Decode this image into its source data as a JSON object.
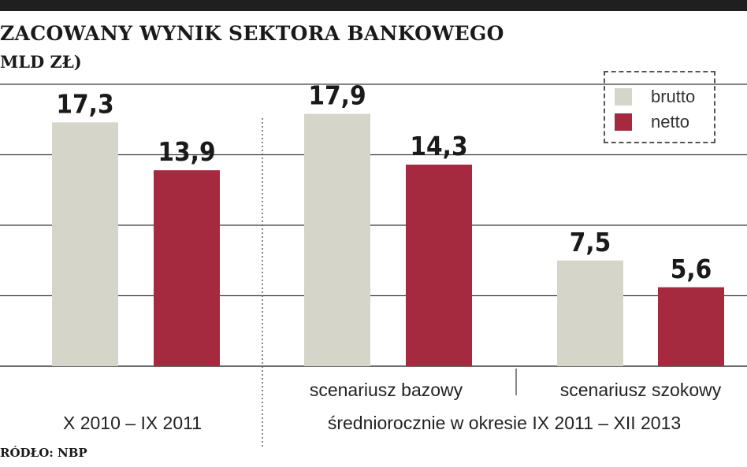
{
  "title": "ZACOWANY WYNIK SEKTORA BANKOWEGO",
  "subtitle": "MLD ZŁ)",
  "source": "RÓDŁO: NBP",
  "colors": {
    "brutto": "#d6d5ca",
    "netto": "#a52a3f",
    "grid": "#3a3a3a",
    "text": "#1a1a1a"
  },
  "chart_data": {
    "type": "bar",
    "categories": [
      "X 2010 – IX 2011",
      "scenariusz bazowy",
      "scenariusz szokowy"
    ],
    "group_label": "średniorocznie w okresie IX 2011 – XII 2013",
    "series": [
      {
        "name": "brutto",
        "values": [
          17.3,
          17.9,
          7.5
        ],
        "labels": [
          "17,3",
          "17,9",
          "7,5"
        ]
      },
      {
        "name": "netto",
        "values": [
          13.9,
          14.3,
          5.6
        ],
        "labels": [
          "13,9",
          "14,3",
          "5,6"
        ]
      }
    ],
    "ylim": [
      0,
      20
    ],
    "grid": true,
    "legend": "top-right"
  }
}
